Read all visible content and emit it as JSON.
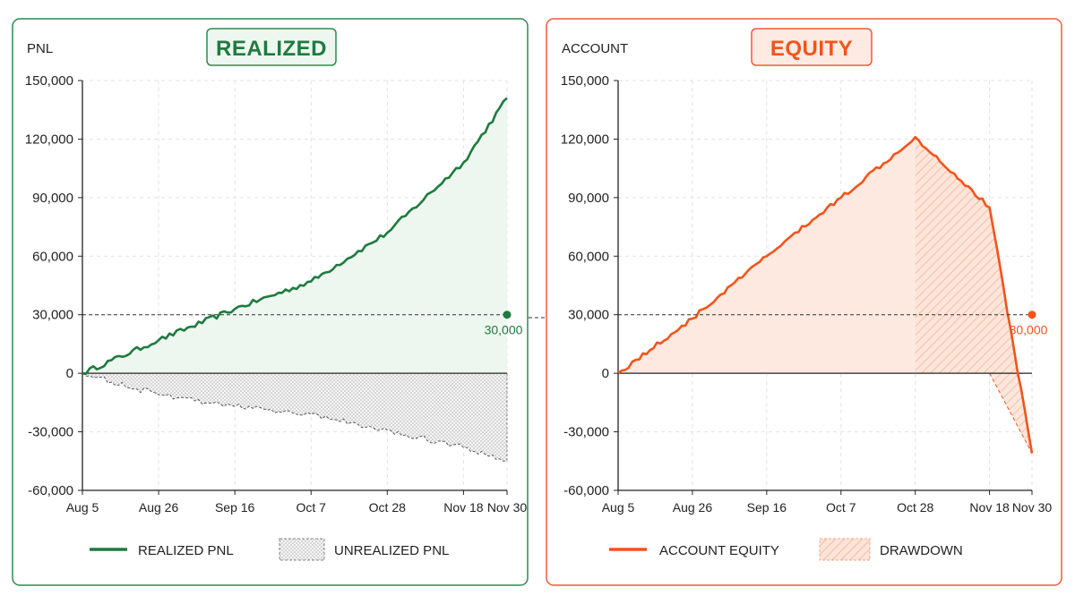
{
  "colors": {
    "green": "#1e7b3e",
    "green_fill": "#eef6f0",
    "orange": "#f2541b",
    "orange_fill": "#fde9e0",
    "panel_green_border": "#2f8a4f",
    "panel_orange_border": "#f05a36",
    "grid": "#e3e3e3",
    "axis": "#222222",
    "text": "#222222"
  },
  "panels": [
    {
      "key": "realized",
      "corner_label": "PNL",
      "title": "REALIZED",
      "threshold_label": "30,000",
      "legend": [
        {
          "label": "REALIZED PNL",
          "icon": "line-swatch-icon"
        },
        {
          "label": "UNREALIZED PNL",
          "icon": "dotted-area-swatch-icon"
        }
      ]
    },
    {
      "key": "equity",
      "corner_label": "ACCOUNT",
      "title": "EQUITY",
      "threshold_label": "30,000",
      "legend": [
        {
          "label": "ACCOUNT EQUITY",
          "icon": "line-swatch-icon"
        },
        {
          "label": "DRAWDOWN",
          "icon": "hatched-area-swatch-icon"
        }
      ]
    }
  ],
  "chart_data": [
    {
      "type": "area",
      "title": "REALIZED",
      "ylabel": "PNL",
      "ylim": [
        -60000,
        150000
      ],
      "yticks": [
        150000,
        120000,
        90000,
        60000,
        30000,
        0,
        -30000,
        -60000
      ],
      "ytick_labels": [
        "150,000",
        "120,000",
        "90,000",
        "60,000",
        "30,000",
        "0",
        "-30,000",
        "-60,000"
      ],
      "xticks": [
        "Aug 5",
        "Aug 26",
        "Sep 16",
        "Oct 7",
        "Oct 28",
        "Nov 18",
        "Nov 30"
      ],
      "x_days": [
        0,
        21,
        42,
        63,
        84,
        105,
        117
      ],
      "grid": true,
      "legend_position": "bottom",
      "reference_line": {
        "value": 30000,
        "label": "30,000"
      },
      "series": [
        {
          "name": "REALIZED PNL",
          "style": "line-with-filled-area",
          "x": [
            "Aug 5",
            "Aug 26",
            "Sep 16",
            "Oct 7",
            "Oct 28",
            "Nov 18",
            "Nov 30"
          ],
          "values": [
            0,
            17000,
            33000,
            47000,
            72000,
            108000,
            141000
          ]
        },
        {
          "name": "UNREALIZED PNL",
          "style": "dashed-line-dotted-area",
          "x": [
            "Aug 5",
            "Aug 26",
            "Sep 16",
            "Oct 7",
            "Oct 28",
            "Nov 18",
            "Nov 30"
          ],
          "values": [
            0,
            -11000,
            -17000,
            -21000,
            -29000,
            -38000,
            -45000
          ]
        }
      ]
    },
    {
      "type": "area",
      "title": "EQUITY",
      "ylabel": "ACCOUNT",
      "ylim": [
        -60000,
        150000
      ],
      "yticks": [
        150000,
        120000,
        90000,
        60000,
        30000,
        0,
        -30000,
        -60000
      ],
      "ytick_labels": [
        "150,000",
        "120,000",
        "90,000",
        "60,000",
        "30,000",
        "0",
        "-30,000",
        "-60,000"
      ],
      "xticks": [
        "Aug 5",
        "Aug 26",
        "Sep 16",
        "Oct 7",
        "Oct 28",
        "Nov 18",
        "Nov 30"
      ],
      "x_days": [
        0,
        21,
        42,
        63,
        84,
        105,
        117
      ],
      "grid": true,
      "legend_position": "bottom",
      "reference_line": {
        "value": 30000,
        "label": "30,000"
      },
      "series": [
        {
          "name": "ACCOUNT EQUITY",
          "style": "line-with-filled-area",
          "x": [
            "Aug 5",
            "Aug 26",
            "Sep 16",
            "Oct 7",
            "Oct 28",
            "Nov 18",
            "Nov 30"
          ],
          "values": [
            0,
            28000,
            60000,
            90000,
            121000,
            85000,
            -41000
          ]
        },
        {
          "name": "DRAWDOWN",
          "style": "hatched-area",
          "from": "Oct 28",
          "to": "Nov 30"
        }
      ]
    }
  ]
}
